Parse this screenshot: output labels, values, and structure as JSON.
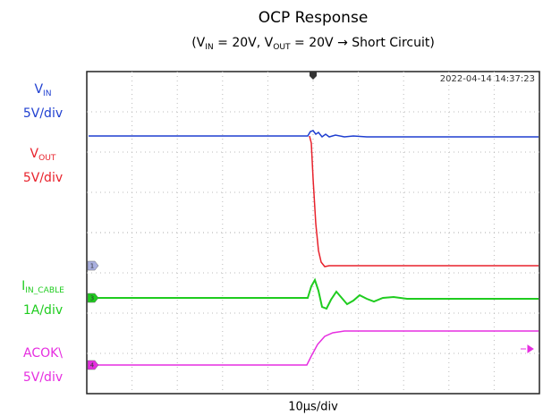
{
  "title": "OCP Response",
  "subtitle": [
    {
      "text": "(V"
    },
    {
      "text": "IN",
      "sub": true
    },
    {
      "text": " = 20V, V"
    },
    {
      "text": "OUT",
      "sub": true
    },
    {
      "text": " = 20V → Short Circuit)"
    }
  ],
  "timestamp": "2022-04-14 14:37:23",
  "timebase": "10µs/div",
  "channels": [
    {
      "name": [
        {
          "text": "V"
        },
        {
          "text": "IN",
          "sub": true
        }
      ],
      "scale": "5V/div",
      "color": "#1f3fd0"
    },
    {
      "name": [
        {
          "text": "V"
        },
        {
          "text": "OUT",
          "sub": true
        }
      ],
      "scale": "5V/div",
      "color": "#e8212b"
    },
    {
      "name": [
        {
          "text": "I"
        },
        {
          "text": "IN_CABLE",
          "sub": true
        }
      ],
      "scale": "1A/div",
      "color": "#1fcc1f"
    },
    {
      "name": [
        {
          "text": "ACOK\\"
        }
      ],
      "scale": "5V/div",
      "color": "#e62ee0"
    }
  ],
  "markers": [
    "1",
    "3",
    "4"
  ]
}
